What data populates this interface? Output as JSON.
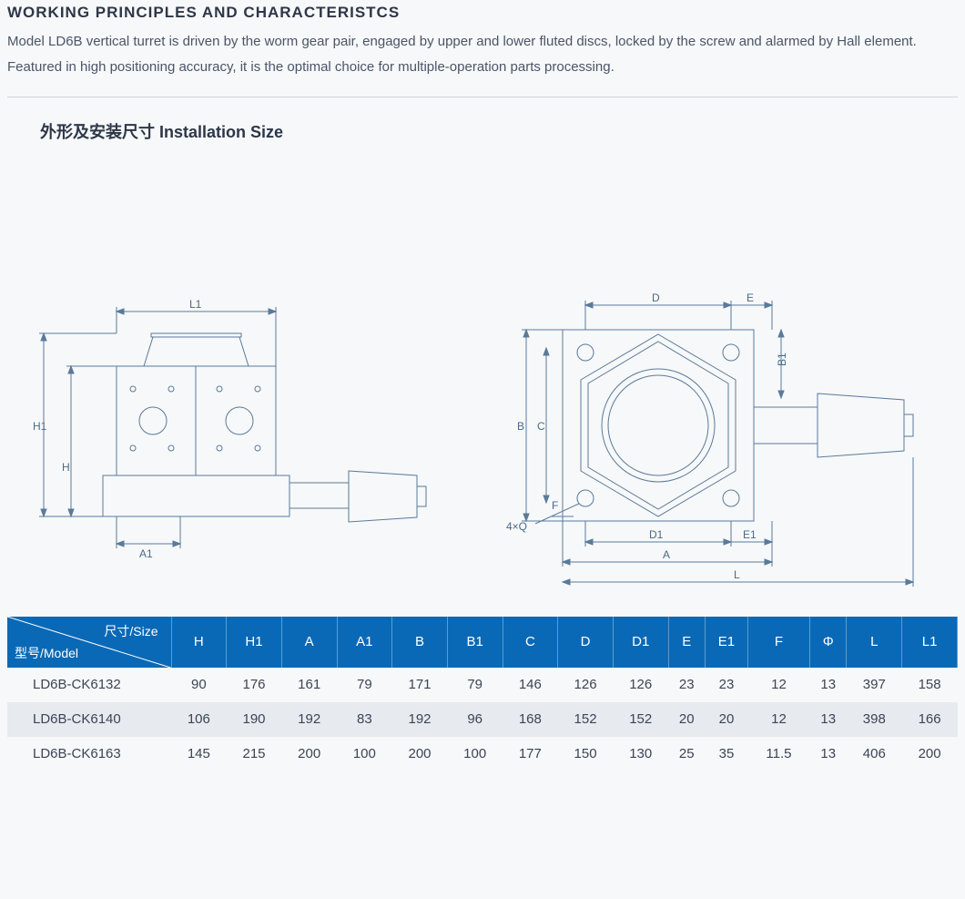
{
  "heading": "WORKING PRINCIPLES AND CHARACTERISTCS",
  "para": "Model LD6B vertical turret is driven by the worm gear pair, engaged by upper and lower fluted discs, locked by the screw and alarmed by Hall element. Featured in high positioning accuracy, it is the optimal choice for multiple-operation parts processing.",
  "subhead": "外形及安装尺寸 Installation Size",
  "diagram": {
    "stroke": "#5a7a9a",
    "stroke_width": 1,
    "left_view": {
      "labels": [
        "L1",
        "H1",
        "H",
        "A1"
      ]
    },
    "right_view": {
      "labels": [
        "D",
        "E",
        "B",
        "C",
        "B1",
        "F",
        "4×Q",
        "D1",
        "E1",
        "A",
        "L"
      ]
    }
  },
  "table": {
    "header_bg": "#0a69b6",
    "header_text": "#ffffff",
    "alt_row_bg": "#e7eaef",
    "size_label": "尺寸/Size",
    "model_label": "型号/Model",
    "columns": [
      "H",
      "H1",
      "A",
      "A1",
      "B",
      "B1",
      "C",
      "D",
      "D1",
      "E",
      "E1",
      "F",
      "Φ",
      "L",
      "L1"
    ],
    "rows": [
      {
        "model": "LD6B-CK6132",
        "values": [
          "90",
          "176",
          "161",
          "79",
          "171",
          "79",
          "146",
          "126",
          "126",
          "23",
          "23",
          "12",
          "13",
          "397",
          "158"
        ]
      },
      {
        "model": "LD6B-CK6140",
        "values": [
          "106",
          "190",
          "192",
          "83",
          "192",
          "96",
          "168",
          "152",
          "152",
          "20",
          "20",
          "12",
          "13",
          "398",
          "166"
        ]
      },
      {
        "model": "LD6B-CK6163",
        "values": [
          "145",
          "215",
          "200",
          "100",
          "200",
          "100",
          "177",
          "150",
          "130",
          "25",
          "35",
          "11.5",
          "13",
          "406",
          "200"
        ]
      }
    ]
  }
}
